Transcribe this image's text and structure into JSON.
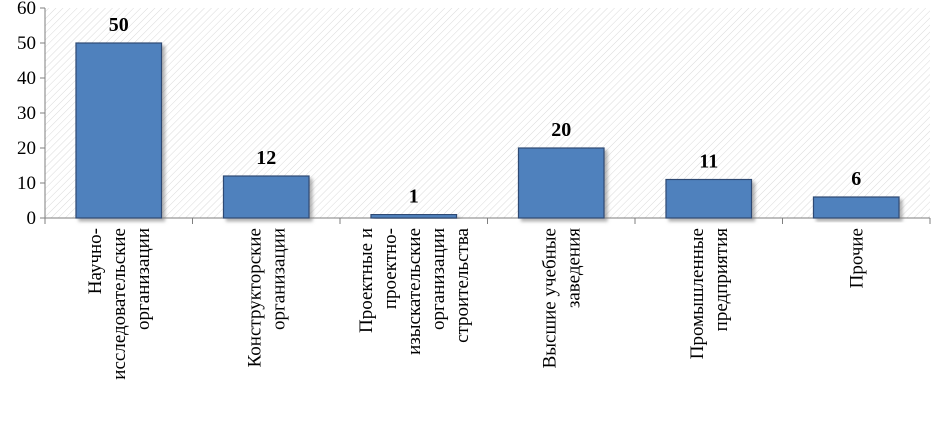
{
  "chart_data": {
    "type": "bar",
    "categories": [
      [
        "Научно-",
        "исследовательские",
        "организации"
      ],
      [
        "Конструкторские",
        "организации"
      ],
      [
        "Проектные и",
        "проектно-",
        "изыскательские",
        "организации",
        "строительства"
      ],
      [
        "Высшие учебные",
        "заведения"
      ],
      [
        "Промышленные",
        "предприятия"
      ],
      [
        "Прочие"
      ]
    ],
    "values": [
      50,
      12,
      1,
      20,
      11,
      6
    ],
    "data_labels": [
      "50",
      "12",
      "1",
      "20",
      "11",
      "6"
    ],
    "y_ticks": [
      "0",
      "10",
      "20",
      "30",
      "40",
      "50",
      "60"
    ],
    "ylim": [
      0,
      60
    ],
    "title": "",
    "xlabel": "",
    "ylabel": "",
    "grid": false,
    "legend": "none",
    "bar_color": "#4F81BD",
    "bar_edge_color": "#2E4A73",
    "plot_pattern_color": "#D9D9D9"
  }
}
